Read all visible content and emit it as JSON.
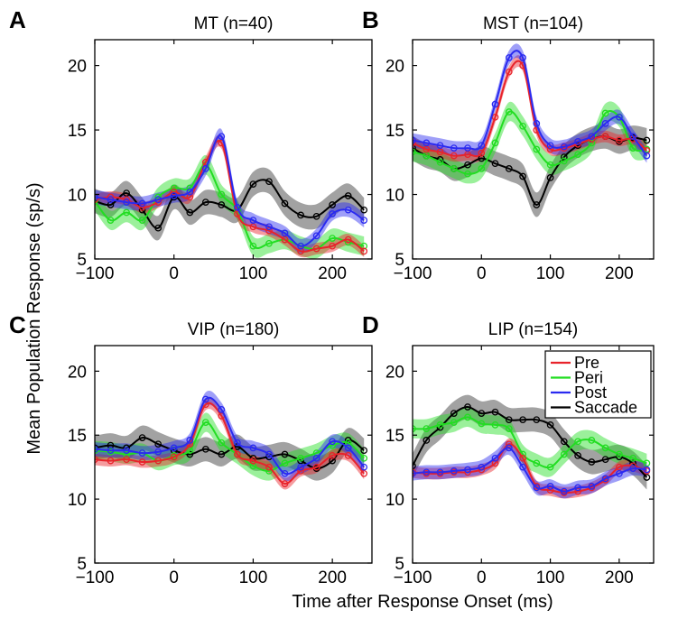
{
  "figure": {
    "ylabel": "Mean Population Response (sp/s)",
    "xlabel": "Time after Response Onset (ms)"
  },
  "colors": {
    "Pre": "#e8232b",
    "Peri": "#22dd22",
    "Post": "#2a2af0",
    "Saccade": "#000000"
  },
  "chart_data": [
    {
      "type": "line",
      "panel_label": "A",
      "title": "MT (n=40)",
      "xlim": [
        -100,
        250
      ],
      "ylim": [
        5,
        22
      ],
      "xticks": [
        -100,
        0,
        100,
        200
      ],
      "yticks": [
        5,
        10,
        15,
        20
      ],
      "x": [
        -100,
        -80,
        -60,
        -40,
        -20,
        0,
        20,
        40,
        60,
        80,
        100,
        120,
        140,
        160,
        180,
        200,
        220,
        240
      ],
      "series": [
        {
          "name": "Pre",
          "values": [
            9.6,
            9.8,
            9.6,
            9.0,
            9.4,
            10.2,
            9.8,
            12.5,
            14.0,
            8.5,
            7.5,
            7.2,
            6.5,
            5.6,
            5.8,
            6.0,
            6.5,
            5.6
          ]
        },
        {
          "name": "Peri",
          "values": [
            9.5,
            8.0,
            8.6,
            8.0,
            9.8,
            10.5,
            10.5,
            12.3,
            10.0,
            8.8,
            6.0,
            6.2,
            6.5,
            6.0,
            5.8,
            6.6,
            6.3,
            6.0
          ]
        },
        {
          "name": "Post",
          "values": [
            9.8,
            9.6,
            9.4,
            9.3,
            9.6,
            9.9,
            10.2,
            12.0,
            14.5,
            9.0,
            8.0,
            7.5,
            7.0,
            6.0,
            6.8,
            8.5,
            8.8,
            8.0
          ]
        },
        {
          "name": "Saccade",
          "values": [
            9.5,
            9.2,
            10.1,
            8.8,
            7.4,
            9.8,
            8.6,
            9.4,
            9.2,
            8.8,
            10.8,
            11.0,
            9.3,
            8.4,
            8.3,
            9.2,
            9.9,
            8.8
          ]
        }
      ]
    },
    {
      "type": "line",
      "panel_label": "B",
      "title": "MST (n=104)",
      "xlim": [
        -100,
        250
      ],
      "ylim": [
        5,
        22
      ],
      "xticks": [
        -100,
        0,
        100,
        200
      ],
      "yticks": [
        5,
        10,
        15,
        20
      ],
      "x": [
        -100,
        -80,
        -60,
        -40,
        -20,
        0,
        20,
        40,
        60,
        80,
        100,
        120,
        140,
        160,
        180,
        200,
        220,
        240
      ],
      "series": [
        {
          "name": "Pre",
          "values": [
            14.0,
            13.5,
            13.3,
            13.0,
            13.1,
            13.2,
            16.0,
            19.5,
            20.0,
            15.0,
            13.5,
            13.6,
            13.9,
            14.3,
            14.5,
            14.2,
            14.3,
            13.4
          ]
        },
        {
          "name": "Peri",
          "values": [
            13.3,
            13.0,
            12.5,
            12.0,
            11.6,
            12.0,
            14.0,
            16.4,
            15.3,
            13.5,
            12.3,
            12.6,
            13.1,
            14.0,
            16.3,
            16.0,
            13.6,
            13.5
          ]
        },
        {
          "name": "Post",
          "values": [
            14.2,
            14.0,
            13.8,
            13.6,
            13.6,
            13.8,
            17.0,
            20.6,
            20.6,
            15.5,
            13.8,
            13.7,
            14.1,
            14.5,
            15.5,
            16.0,
            14.5,
            13.0
          ]
        },
        {
          "name": "Saccade",
          "values": [
            13.6,
            13.0,
            12.7,
            12.0,
            12.3,
            12.8,
            12.4,
            12.0,
            11.4,
            9.2,
            11.3,
            12.9,
            13.8,
            14.3,
            14.5,
            14.1,
            14.4,
            14.2
          ]
        }
      ]
    },
    {
      "type": "line",
      "panel_label": "C",
      "title": "VIP (n=180)",
      "xlim": [
        -100,
        250
      ],
      "ylim": [
        5,
        22
      ],
      "xticks": [
        -100,
        0,
        100,
        200
      ],
      "yticks": [
        5,
        10,
        15,
        20
      ],
      "x": [
        -100,
        -80,
        -60,
        -40,
        -20,
        0,
        20,
        40,
        60,
        80,
        100,
        120,
        140,
        160,
        180,
        200,
        220,
        240
      ],
      "series": [
        {
          "name": "Pre",
          "values": [
            13.1,
            13.0,
            13.1,
            12.9,
            13.0,
            13.3,
            14.3,
            17.4,
            16.5,
            13.5,
            13.0,
            12.5,
            11.2,
            12.2,
            12.5,
            13.4,
            13.4,
            12.0
          ]
        },
        {
          "name": "Peri",
          "values": [
            13.8,
            13.7,
            13.5,
            13.6,
            13.0,
            13.4,
            13.8,
            16.0,
            14.4,
            13.5,
            12.6,
            12.2,
            12.8,
            13.2,
            13.6,
            14.2,
            14.4,
            13.2
          ]
        },
        {
          "name": "Post",
          "values": [
            13.9,
            13.8,
            13.8,
            13.6,
            13.7,
            14.0,
            14.6,
            17.8,
            17.0,
            14.4,
            14.0,
            13.5,
            12.0,
            12.5,
            13.2,
            14.5,
            14.0,
            12.5
          ]
        },
        {
          "name": "Saccade",
          "values": [
            14.0,
            14.2,
            14.0,
            14.8,
            14.3,
            13.8,
            13.5,
            13.9,
            13.5,
            14.1,
            13.2,
            13.3,
            13.5,
            13.0,
            12.4,
            13.0,
            14.6,
            13.8
          ]
        }
      ]
    },
    {
      "type": "line",
      "panel_label": "D",
      "title": "LIP (n=154)",
      "xlim": [
        -100,
        250
      ],
      "ylim": [
        5,
        22
      ],
      "xticks": [
        -100,
        0,
        100,
        200
      ],
      "yticks": [
        5,
        10,
        15,
        20
      ],
      "x": [
        -100,
        -80,
        -60,
        -40,
        -20,
        0,
        20,
        40,
        60,
        80,
        100,
        120,
        140,
        160,
        180,
        200,
        220,
        240
      ],
      "series": [
        {
          "name": "Pre",
          "values": [
            12.1,
            12.0,
            12.0,
            12.1,
            12.1,
            12.3,
            12.8,
            14.3,
            13.2,
            11.0,
            10.7,
            10.5,
            10.6,
            10.9,
            11.5,
            12.5,
            12.6,
            12.2
          ]
        },
        {
          "name": "Peri",
          "values": [
            15.5,
            15.5,
            15.8,
            16.0,
            16.4,
            15.9,
            15.8,
            15.5,
            13.5,
            12.8,
            12.5,
            13.5,
            14.5,
            14.6,
            14.0,
            13.5,
            13.2,
            12.8
          ]
        },
        {
          "name": "Post",
          "values": [
            12.0,
            12.1,
            12.1,
            12.2,
            12.3,
            12.5,
            13.2,
            14.0,
            12.5,
            10.9,
            11.0,
            10.6,
            10.9,
            11.0,
            11.6,
            12.0,
            12.4,
            12.3
          ]
        },
        {
          "name": "Saccade",
          "values": [
            12.6,
            14.6,
            15.6,
            16.7,
            17.2,
            16.7,
            16.8,
            16.2,
            16.2,
            16.2,
            15.8,
            14.5,
            13.4,
            12.9,
            13.1,
            13.3,
            12.8,
            11.7
          ]
        }
      ]
    }
  ],
  "legend": {
    "placement": "top-right of panel D",
    "entries": [
      "Pre",
      "Peri",
      "Post",
      "Saccade"
    ]
  }
}
